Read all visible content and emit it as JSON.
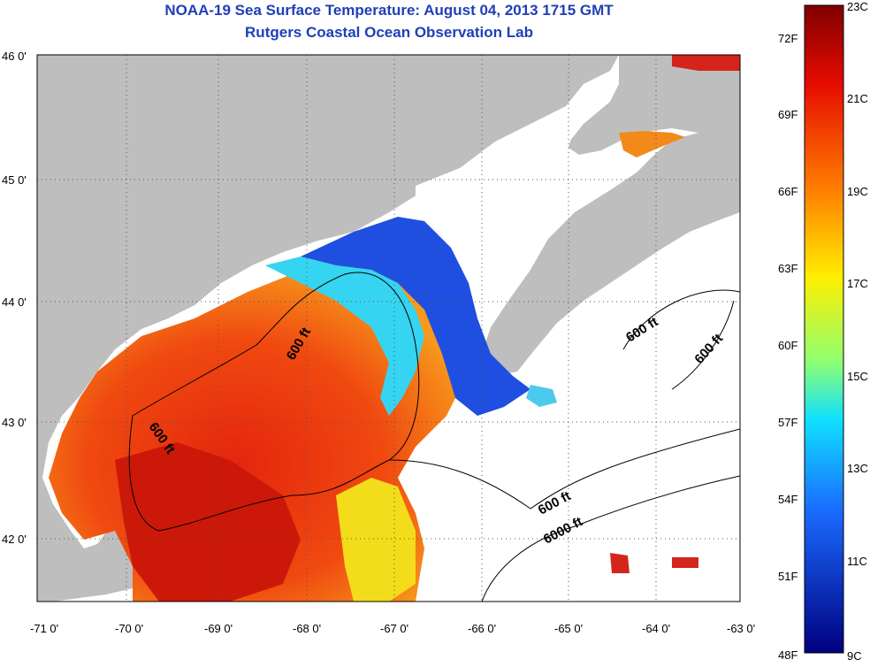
{
  "title": {
    "line1": "NOAA-19 Sea Surface Temperature:  August 04, 2013 1715 GMT",
    "line2": "Rutgers Coastal Ocean Observation Lab"
  },
  "map": {
    "lon_ticks": [
      "-71 0'",
      "-70 0'",
      "-69 0'",
      "-68 0'",
      "-67 0'",
      "-66 0'",
      "-65 0'",
      "-64 0'",
      "-63 0'"
    ],
    "lat_ticks": [
      "46 0'",
      "45 0'",
      "44 0'",
      "43 0'",
      "42 0'"
    ],
    "contour_labels": [
      "600 ft",
      "600 ft",
      "600 ft",
      "600 ft",
      "600 ft",
      "6000 ft"
    ],
    "colors": {
      "land": "#bebebe",
      "cloud": "#ffffff",
      "warm": "#d71e0f",
      "cold": "#1a3ad1"
    }
  },
  "colorbar": {
    "fahrenheit": [
      "72F",
      "69F",
      "66F",
      "63F",
      "60F",
      "57F",
      "54F",
      "51F",
      "48F"
    ],
    "celsius": [
      "23C",
      "21C",
      "19C",
      "17C",
      "15C",
      "13C",
      "11C",
      "9C"
    ],
    "range_c": [
      9,
      23
    ]
  }
}
